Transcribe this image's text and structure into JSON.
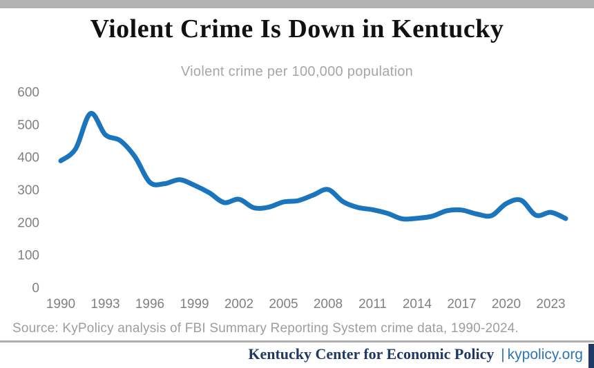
{
  "page": {
    "title": "Violent Crime Is Down in Kentucky",
    "subtitle": "Violent crime per 100,000 population",
    "source": "Source: KyPolicy analysis of FBI Summary Reporting System crime data, 1990-2024.",
    "footer": {
      "brand": "Kentucky Center for Economic Policy",
      "separator": "|",
      "site": "kypolicy.org"
    }
  },
  "colors": {
    "top_bar": "#b3b3b3",
    "line": "#1b75bc",
    "axis_text": "#808080",
    "subtitle_text": "#a6a6a6",
    "source_text": "#9d9d9d",
    "divider": "#adadad",
    "footer_brand": "#1f3864",
    "footer_site": "#2e74b5"
  },
  "chart_data": {
    "type": "line",
    "title": "Violent Crime Is Down in Kentucky",
    "subtitle": "Violent crime per 100,000 population",
    "series_name": "Violent crime rate per 100,000 population",
    "x": [
      1990,
      1991,
      1992,
      1993,
      1994,
      1995,
      1996,
      1997,
      1998,
      1999,
      2000,
      2001,
      2002,
      2003,
      2004,
      2005,
      2006,
      2007,
      2008,
      2009,
      2010,
      2011,
      2012,
      2013,
      2014,
      2015,
      2016,
      2017,
      2018,
      2019,
      2020,
      2021,
      2022,
      2023,
      2024
    ],
    "values": [
      388,
      425,
      533,
      468,
      450,
      400,
      322,
      318,
      330,
      313,
      290,
      260,
      270,
      244,
      246,
      262,
      266,
      283,
      300,
      263,
      245,
      238,
      227,
      210,
      212,
      218,
      235,
      237,
      225,
      220,
      257,
      267,
      221,
      230,
      211
    ],
    "xlabel": "",
    "ylabel": "",
    "ylim": [
      0,
      600
    ],
    "xlim": [
      1990,
      2024
    ],
    "yticks": [
      0,
      100,
      200,
      300,
      400,
      500,
      600
    ],
    "xticks": [
      1990,
      1993,
      1996,
      1999,
      2002,
      2005,
      2008,
      2011,
      2014,
      2017,
      2020,
      2023
    ],
    "grid": false,
    "legend": false,
    "line_color": "#1b75bc",
    "line_width": 7
  }
}
